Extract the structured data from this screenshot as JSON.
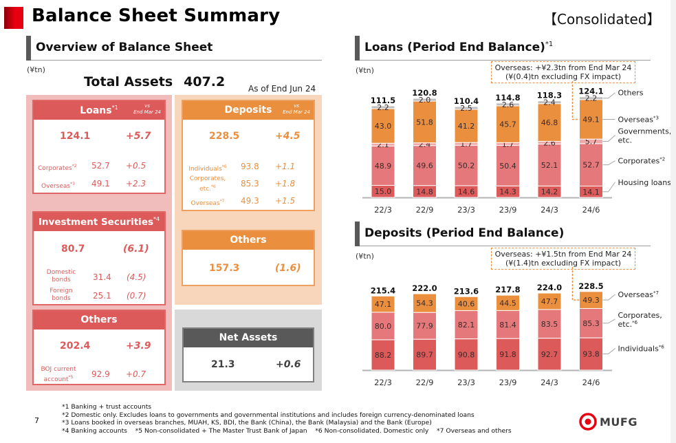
{
  "header": {
    "title": "Balance Sheet Summary",
    "scope": "【Consolidated】"
  },
  "overview": {
    "section_title": "Overview of Balance Sheet",
    "unit": "(¥tn)",
    "total_assets_label": "Total Assets",
    "total_assets_value": "407.2",
    "as_of": "As of End Jun 24",
    "vs_label_1": "vs",
    "vs_label_2": "End Mar 24",
    "loans": {
      "title": "Loans",
      "note": "*1",
      "value": "124.1",
      "change": "+5.7",
      "rows": [
        {
          "label": "Corporates",
          "note": "*2",
          "value": "52.7",
          "change": "+0.5"
        },
        {
          "label": "Overseas",
          "note": "*3",
          "value": "49.1",
          "change": "+2.3"
        }
      ]
    },
    "investment_securities": {
      "title": "Investment Securities",
      "note": "*4",
      "value": "80.7",
      "change": "(6.1)",
      "rows": [
        {
          "label_1": "Domestic",
          "label_2": "bonds",
          "value": "31.4",
          "change": "(4.5)"
        },
        {
          "label_1": "Foreign",
          "label_2": "bonds",
          "value": "25.1",
          "change": "(0.7)"
        }
      ]
    },
    "assets_others": {
      "title": "Others",
      "value": "202.4",
      "change": "+3.9",
      "rows": [
        {
          "label_1": "BOJ current",
          "label_2": "account",
          "note": "*5",
          "value": "92.9",
          "change": "+0.7"
        }
      ]
    },
    "deposits": {
      "title": "Deposits",
      "value": "228.5",
      "change": "+4.5",
      "rows": [
        {
          "label_1": "Individuals",
          "label_2": "",
          "note": "*6",
          "value": "93.8",
          "change": "+1.1"
        },
        {
          "label_1": "Corporates,",
          "label_2": "etc.",
          "note": "*6",
          "value": "85.3",
          "change": "+1.8"
        },
        {
          "label_1": "Overseas",
          "label_2": "",
          "note": "*7",
          "value": "49.3",
          "change": "+1.5"
        }
      ]
    },
    "liab_others": {
      "title": "Others",
      "value": "157.3",
      "change": "(1.6)"
    },
    "net_assets": {
      "title": "Net Assets",
      "value": "21.3",
      "change": "+0.6"
    }
  },
  "chart_data": [
    {
      "type": "bar",
      "stacked": true,
      "title": "Loans (Period End Balance)",
      "title_note": "*1",
      "ylabel": "(¥tn)",
      "categories": [
        "22/3",
        "22/9",
        "23/3",
        "23/9",
        "24/3",
        "24/6"
      ],
      "totals": [
        "111.5",
        "120.8",
        "110.4",
        "114.8",
        "118.3",
        "124.1"
      ],
      "series": [
        {
          "name": "Housing loans",
          "note": "",
          "color": "#dc5a5a",
          "values": [
            15.0,
            14.8,
            14.6,
            14.3,
            14.2,
            14.1
          ]
        },
        {
          "name": "Corporates",
          "note": "*2",
          "color": "#e4787a",
          "values": [
            48.9,
            49.6,
            50.2,
            50.4,
            52.1,
            52.7
          ]
        },
        {
          "name": "Governments, etc.",
          "note": "",
          "color": "#f0a9a9",
          "values": [
            2.1,
            2.4,
            1.7,
            1.7,
            2.6,
            5.7
          ]
        },
        {
          "name": "Overseas",
          "note": "*3",
          "color": "#ea8f3e",
          "values": [
            43.0,
            51.8,
            41.2,
            45.7,
            46.8,
            49.1
          ]
        },
        {
          "name": "Others",
          "note": "",
          "color": "#bfbfbf",
          "values": [
            2.2,
            2.0,
            2.5,
            2.6,
            2.4,
            2.2
          ]
        }
      ],
      "callout": [
        "Overseas: +¥2.3tn from End Mar 24",
        "(¥(0.4)tn excluding FX impact)"
      ],
      "legend": "right"
    },
    {
      "type": "bar",
      "stacked": true,
      "title": "Deposits (Period End Balance)",
      "title_note": "",
      "ylabel": "(¥tn)",
      "categories": [
        "22/3",
        "22/9",
        "23/3",
        "23/9",
        "24/3",
        "24/6"
      ],
      "totals": [
        "215.4",
        "222.0",
        "213.6",
        "217.8",
        "224.0",
        "228.5"
      ],
      "series": [
        {
          "name": "Individuals",
          "note": "*6",
          "color": "#dc5a5a",
          "values": [
            88.2,
            89.7,
            90.8,
            91.8,
            92.7,
            93.8
          ]
        },
        {
          "name": "Corporates, etc.",
          "note": "*6",
          "color": "#e4787a",
          "values": [
            80.0,
            77.9,
            82.1,
            81.4,
            83.5,
            85.3
          ]
        },
        {
          "name": "Overseas",
          "note": "*7",
          "color": "#ea8f3e",
          "values": [
            47.1,
            54.3,
            40.6,
            44.5,
            47.7,
            49.3
          ]
        }
      ],
      "callout": [
        "Overseas: +¥1.5tn from End Mar 24",
        "(¥(1.4)tn excluding FX impact)"
      ],
      "legend": "right"
    }
  ],
  "footnotes": [
    "*1 Banking + trust accounts",
    "*2 Domestic only. Excludes loans to governments and governmental institutions and includes foreign currency-denominated loans",
    "*3 Loans booked in overseas branches, MUAH, KS, BDI, the Bank (China), the Bank (Malaysia) and the Bank (Europe)",
    "*4 Banking accounts    *5 Non-consolidated + The Master Trust Bank of Japan    *6 Non-consolidated. Domestic only    *7 Overseas and others"
  ],
  "page_number": "7",
  "brand": "MUFG",
  "colors": {
    "red": "#dc5a5a",
    "orange": "#ea8f3e",
    "gray": "#595959",
    "brand_red": "#e60012"
  }
}
